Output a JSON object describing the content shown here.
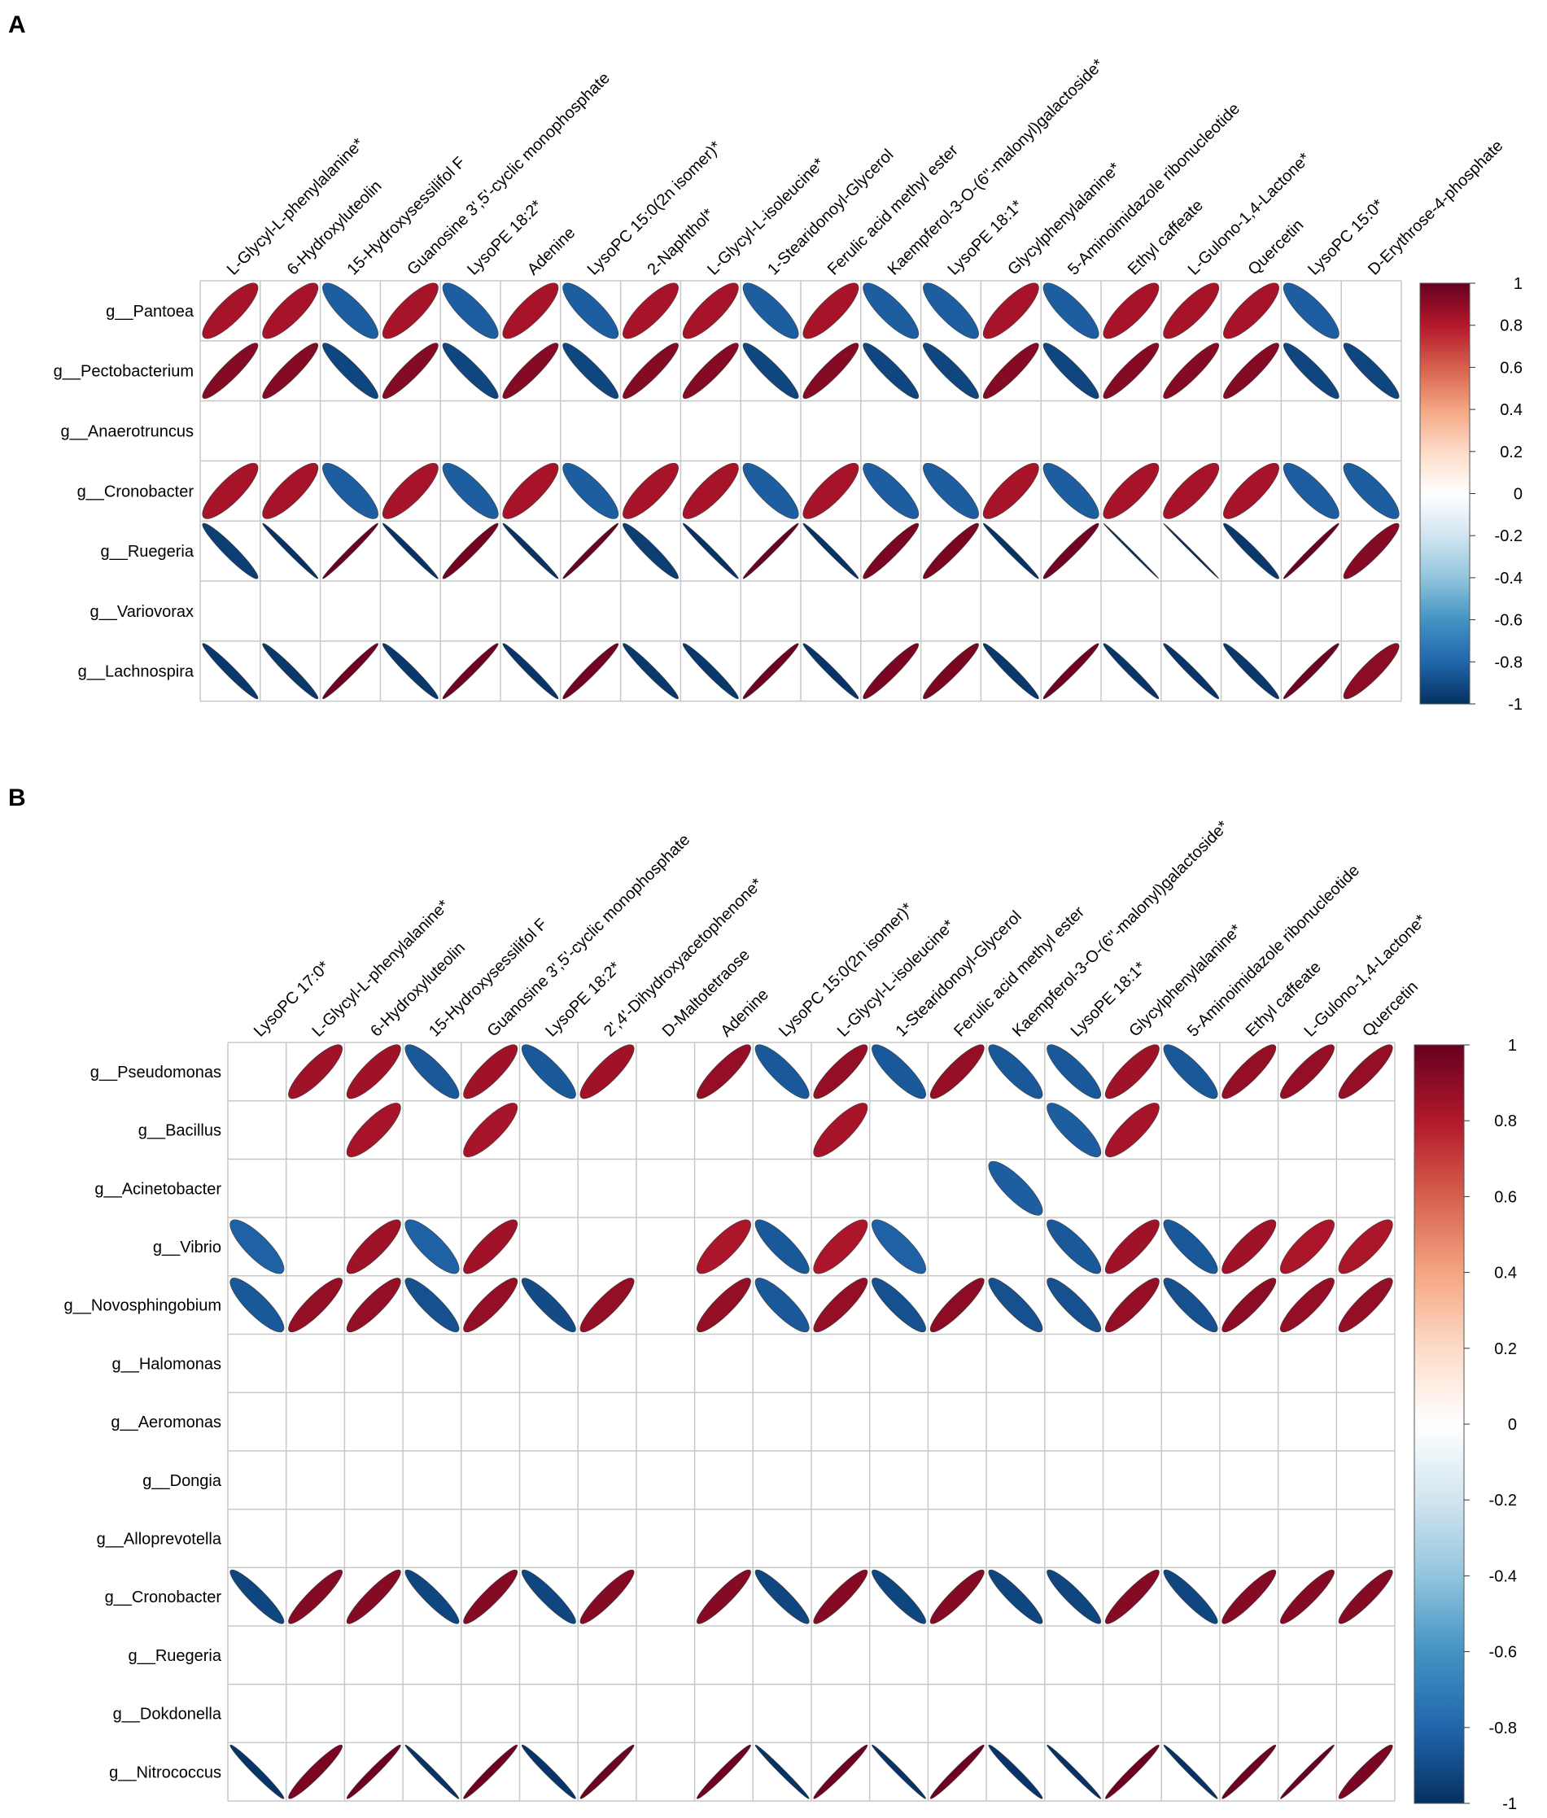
{
  "chart_data": [
    {
      "type": "heatmap",
      "panel": "A",
      "columns": [
        "L-Glycyl-L-phenylalanine*",
        "6-Hydroxyluteolin",
        "15-Hydroxysessilifol F",
        "Guanosine 3',5'-cyclic monophosphate",
        "LysoPE 18:2*",
        "Adenine",
        "LysoPC 15:0(2n isomer)*",
        "2-Naphthol*",
        "L-Glycyl-L-isoleucine*",
        "1-Stearidonoyl-Glycerol",
        "Ferulic acid methyl ester",
        "Kaempferol-3-O-(6''-malonyl)galactoside*",
        "LysoPE 18:1*",
        "Glycylphenylalanine*",
        "5-Aminoimidazole ribonucleotide",
        "Ethyl caffeate",
        "L-Gulono-1,4-Lactone*",
        "Quercetin",
        "LysoPC 15:0*",
        "D-Erythrose-4-phosphate"
      ],
      "rows": [
        "g__Pantoea",
        "g__Pectobacterium",
        "g__Anaerotruncus",
        "g__Cronobacter",
        "g__Ruegeria",
        "g__Variovorax",
        "g__Lachnospira"
      ],
      "values": [
        [
          0.83,
          0.83,
          -0.83,
          0.83,
          -0.83,
          0.83,
          -0.83,
          0.83,
          0.83,
          -0.83,
          0.83,
          -0.83,
          -0.83,
          0.83,
          -0.83,
          0.83,
          0.83,
          0.83,
          -0.83,
          null
        ],
        [
          0.92,
          0.92,
          -0.92,
          0.92,
          -0.92,
          0.92,
          -0.92,
          0.92,
          0.92,
          -0.92,
          0.92,
          -0.92,
          -0.92,
          0.92,
          -0.92,
          0.92,
          0.92,
          0.92,
          -0.92,
          -0.92
        ],
        [
          null,
          null,
          null,
          null,
          null,
          null,
          null,
          null,
          null,
          null,
          null,
          null,
          null,
          null,
          null,
          null,
          null,
          null,
          null,
          null
        ],
        [
          0.83,
          0.83,
          -0.83,
          0.83,
          -0.83,
          0.83,
          -0.83,
          0.83,
          0.83,
          -0.83,
          0.83,
          -0.83,
          -0.83,
          0.83,
          -0.83,
          0.83,
          0.83,
          0.83,
          -0.83,
          -0.83
        ],
        [
          -0.95,
          -0.99,
          0.99,
          -0.99,
          0.97,
          -0.99,
          0.99,
          -0.95,
          -0.99,
          0.99,
          -0.99,
          0.95,
          0.95,
          -0.99,
          0.97,
          -1.0,
          -1.0,
          -0.97,
          0.99,
          0.92
        ],
        [
          null,
          null,
          null,
          null,
          null,
          null,
          null,
          null,
          null,
          null,
          null,
          null,
          null,
          null,
          null,
          null,
          null,
          null,
          null,
          null
        ],
        [
          -0.97,
          -0.97,
          0.98,
          -0.97,
          0.98,
          -0.98,
          0.97,
          -0.97,
          -0.97,
          0.98,
          -0.98,
          0.95,
          0.95,
          -0.97,
          0.98,
          -0.98,
          -0.98,
          -0.97,
          0.98,
          0.9
        ]
      ],
      "colorbar": {
        "min": -1,
        "max": 1,
        "ticks": [
          "1",
          "0.8",
          "0.6",
          "0.4",
          "0.2",
          "0",
          "-0.2",
          "-0.4",
          "-0.6",
          "-0.8",
          "-1"
        ]
      }
    },
    {
      "type": "heatmap",
      "panel": "B",
      "columns": [
        "LysoPC 17:0*",
        "L-Glycyl-L-phenylalanine*",
        "6-Hydroxyluteolin",
        "15-Hydroxysessilifol F",
        "Guanosine 3',5'-cyclic monophosphate",
        "LysoPE 18:2*",
        "2',4'-Dihydroxyacetophenone*",
        "D-Maltotetraose",
        "Adenine",
        "LysoPC 15:0(2n isomer)*",
        "L-Glycyl-L-isoleucine*",
        "1-Stearidonoyl-Glycerol",
        "Ferulic acid methyl ester",
        "Kaempferol-3-O-(6''-malonyl)galactoside*",
        "LysoPE 18:1*",
        "Glycylphenylalanine*",
        "5-Aminoimidazole ribonucleotide",
        "Ethyl caffeate",
        "L-Gulono-1,4-Lactone*",
        "Quercetin"
      ],
      "rows": [
        "g__Pseudomonas",
        "g__Bacillus",
        "g__Acinetobacter",
        "g__Vibrio",
        "g__Novosphingobium",
        "g__Halomonas",
        "g__Aeromonas",
        "g__Dongia",
        "g__Alloprevotella",
        "g__Cronobacter",
        "g__Ruegeria",
        "g__Dokdonella",
        "g__Nitrococcus"
      ],
      "values": [
        [
          null,
          0.85,
          0.85,
          -0.85,
          0.85,
          -0.85,
          0.85,
          null,
          0.88,
          -0.85,
          0.88,
          -0.85,
          0.88,
          -0.85,
          -0.85,
          0.85,
          -0.85,
          0.88,
          0.88,
          0.88
        ],
        [
          null,
          null,
          0.83,
          null,
          0.83,
          null,
          null,
          null,
          null,
          null,
          0.83,
          null,
          null,
          null,
          -0.83,
          0.83,
          null,
          null,
          null,
          null
        ],
        [
          null,
          null,
          null,
          null,
          null,
          null,
          null,
          null,
          null,
          null,
          null,
          null,
          null,
          -0.83,
          null,
          null,
          null,
          null,
          null,
          null
        ],
        [
          -0.82,
          null,
          0.85,
          -0.82,
          0.85,
          null,
          null,
          null,
          0.82,
          -0.85,
          0.82,
          -0.82,
          null,
          null,
          -0.85,
          0.85,
          -0.85,
          0.85,
          0.82,
          0.82
        ],
        [
          -0.85,
          0.88,
          0.88,
          -0.88,
          0.88,
          -0.9,
          0.88,
          null,
          0.88,
          -0.85,
          0.88,
          -0.88,
          0.9,
          -0.88,
          -0.88,
          0.88,
          -0.88,
          0.9,
          0.88,
          0.88
        ],
        [
          null,
          null,
          null,
          null,
          null,
          null,
          null,
          null,
          null,
          null,
          null,
          null,
          null,
          null,
          null,
          null,
          null,
          null,
          null,
          null
        ],
        [
          null,
          null,
          null,
          null,
          null,
          null,
          null,
          null,
          null,
          null,
          null,
          null,
          null,
          null,
          null,
          null,
          null,
          null,
          null,
          null
        ],
        [
          null,
          null,
          null,
          null,
          null,
          null,
          null,
          null,
          null,
          null,
          null,
          null,
          null,
          null,
          null,
          null,
          null,
          null,
          null,
          null
        ],
        [
          null,
          null,
          null,
          null,
          null,
          null,
          null,
          null,
          null,
          null,
          null,
          null,
          null,
          null,
          null,
          null,
          null,
          null,
          null,
          null
        ],
        [
          -0.92,
          0.92,
          0.92,
          -0.92,
          0.92,
          -0.92,
          0.92,
          null,
          0.92,
          -0.92,
          0.92,
          -0.92,
          0.92,
          -0.92,
          -0.92,
          0.92,
          -0.92,
          0.92,
          0.92,
          0.92
        ],
        [
          null,
          null,
          null,
          null,
          null,
          null,
          null,
          null,
          null,
          null,
          null,
          null,
          null,
          null,
          null,
          null,
          null,
          null,
          null,
          null
        ],
        [
          null,
          null,
          null,
          null,
          null,
          null,
          null,
          null,
          null,
          null,
          null,
          null,
          null,
          null,
          null,
          null,
          null,
          null,
          null,
          null
        ],
        [
          -0.98,
          0.95,
          0.98,
          -0.99,
          0.98,
          -0.98,
          0.98,
          null,
          0.98,
          -0.99,
          0.98,
          -0.99,
          0.98,
          -0.98,
          -0.99,
          0.98,
          -0.99,
          0.98,
          0.99,
          0.95
        ]
      ],
      "colorbar": {
        "min": -1,
        "max": 1,
        "ticks": [
          "1",
          "0.8",
          "0.6",
          "0.4",
          "0.2",
          "0",
          "-0.2",
          "-0.4",
          "-0.6",
          "-0.8",
          "-1"
        ]
      }
    }
  ]
}
